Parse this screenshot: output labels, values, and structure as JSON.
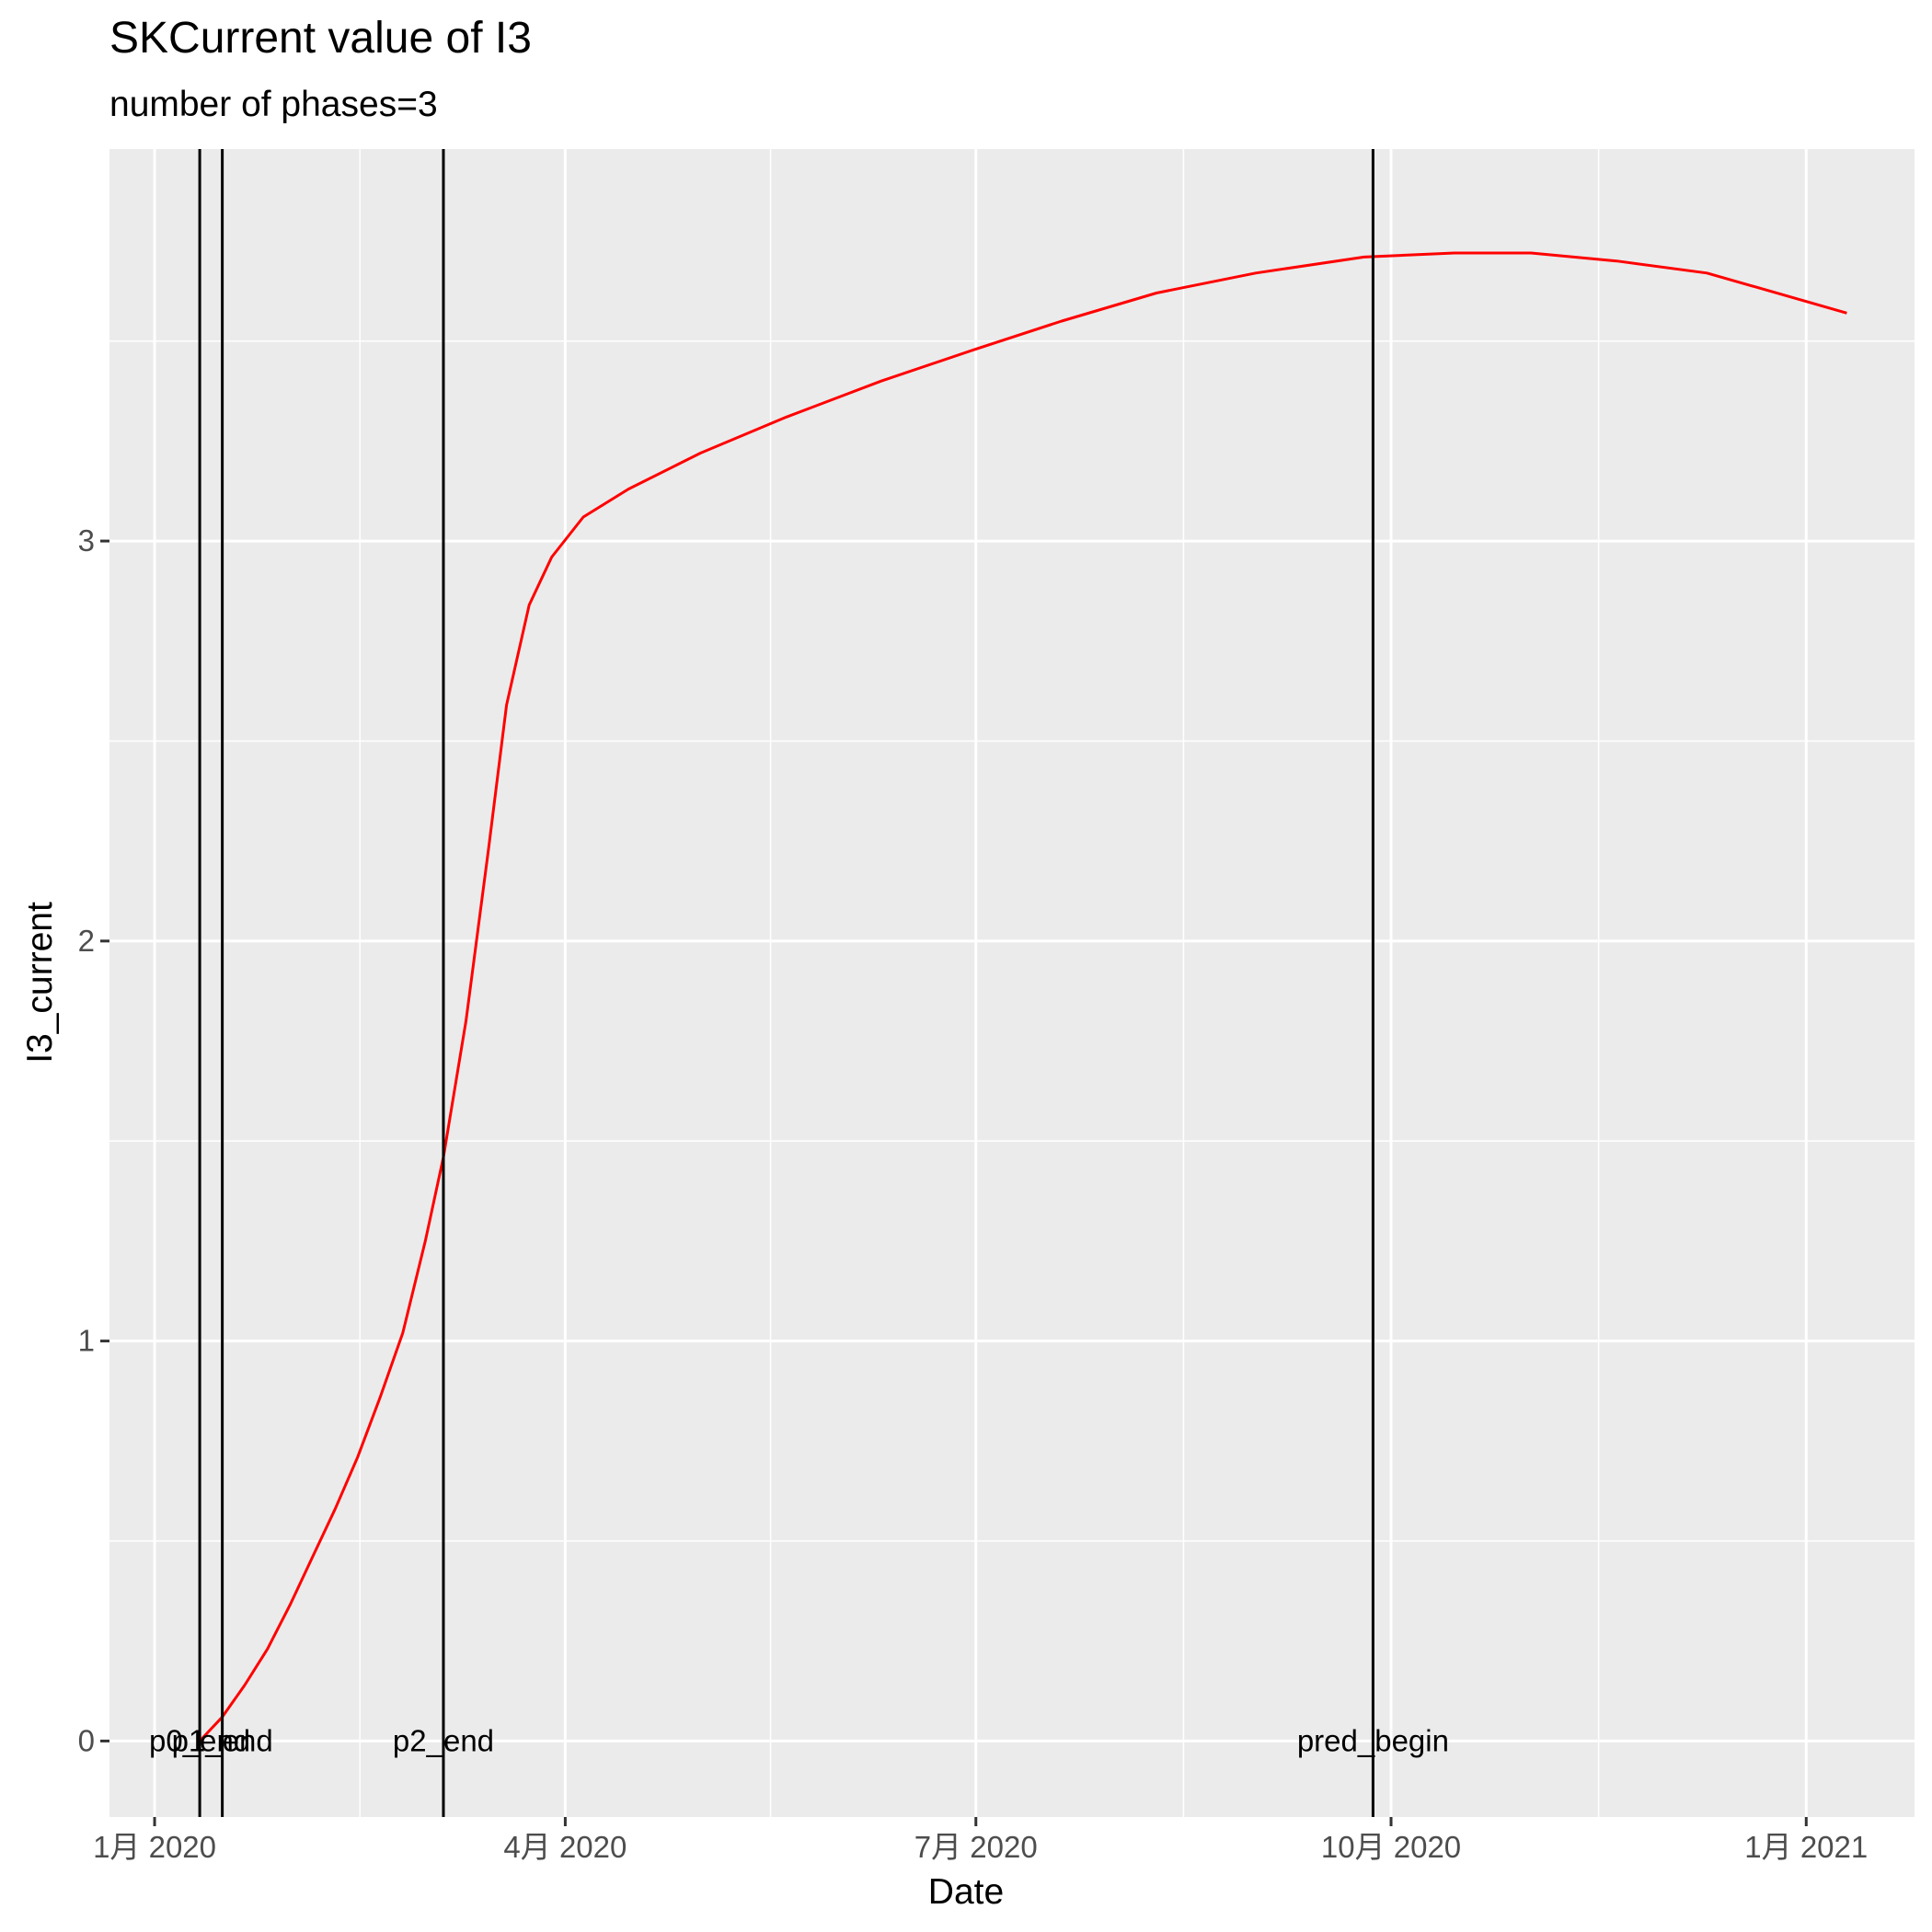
{
  "chart_data": {
    "type": "line",
    "title": "SKCurrent value of I3",
    "subtitle": "number of phases=3",
    "xlabel": "Date",
    "ylabel": "I3_current",
    "x_axis": {
      "kind": "date",
      "range": [
        "2019-12-22",
        "2021-01-25"
      ],
      "ticks": [
        {
          "date": "2020-01-01",
          "label": "1月 2020"
        },
        {
          "date": "2020-04-01",
          "label": "4月 2020"
        },
        {
          "date": "2020-07-01",
          "label": "7月 2020"
        },
        {
          "date": "2020-10-01",
          "label": "10月 2020"
        },
        {
          "date": "2021-01-01",
          "label": "1月 2021"
        }
      ]
    },
    "y_axis": {
      "range": [
        -0.19,
        3.98
      ],
      "ticks": [
        0,
        1,
        2,
        3
      ],
      "tick_labels": [
        "0",
        "1",
        "2",
        "3"
      ],
      "minor_breaks": [
        0.5,
        1.5,
        2.5,
        3.5
      ]
    },
    "grid": true,
    "series": [
      {
        "color": "#ff0000",
        "points": [
          [
            "2020-01-11",
            0.0
          ],
          [
            "2020-01-16",
            0.06
          ],
          [
            "2020-01-21",
            0.14
          ],
          [
            "2020-01-26",
            0.23
          ],
          [
            "2020-01-31",
            0.34
          ],
          [
            "2020-02-05",
            0.46
          ],
          [
            "2020-02-10",
            0.58
          ],
          [
            "2020-02-15",
            0.71
          ],
          [
            "2020-02-20",
            0.86
          ],
          [
            "2020-02-25",
            1.02
          ],
          [
            "2020-03-01",
            1.25
          ],
          [
            "2020-03-05",
            1.46
          ],
          [
            "2020-03-10",
            1.8
          ],
          [
            "2020-03-15",
            2.23
          ],
          [
            "2020-03-19",
            2.59
          ],
          [
            "2020-03-24",
            2.84
          ],
          [
            "2020-03-29",
            2.96
          ],
          [
            "2020-04-05",
            3.06
          ],
          [
            "2020-04-15",
            3.13
          ],
          [
            "2020-05-01",
            3.22
          ],
          [
            "2020-05-20",
            3.31
          ],
          [
            "2020-06-10",
            3.4
          ],
          [
            "2020-07-01",
            3.48
          ],
          [
            "2020-07-20",
            3.55
          ],
          [
            "2020-08-10",
            3.62
          ],
          [
            "2020-09-01",
            3.67
          ],
          [
            "2020-09-25",
            3.71
          ],
          [
            "2020-10-15",
            3.72
          ],
          [
            "2020-11-01",
            3.72
          ],
          [
            "2020-11-20",
            3.7
          ],
          [
            "2020-12-10",
            3.67
          ],
          [
            "2021-01-10",
            3.57
          ]
        ]
      }
    ],
    "vlines": [
      {
        "date": "2020-01-11",
        "label": "p0_end"
      },
      {
        "date": "2020-01-16",
        "label": "p1_end"
      },
      {
        "date": "2020-03-05",
        "label": "p2_end"
      },
      {
        "date": "2020-09-27",
        "label": "pred_begin"
      }
    ],
    "vline_color": "#000000",
    "panel_background": "#ebebeb",
    "gridline_color": "#ffffff"
  }
}
